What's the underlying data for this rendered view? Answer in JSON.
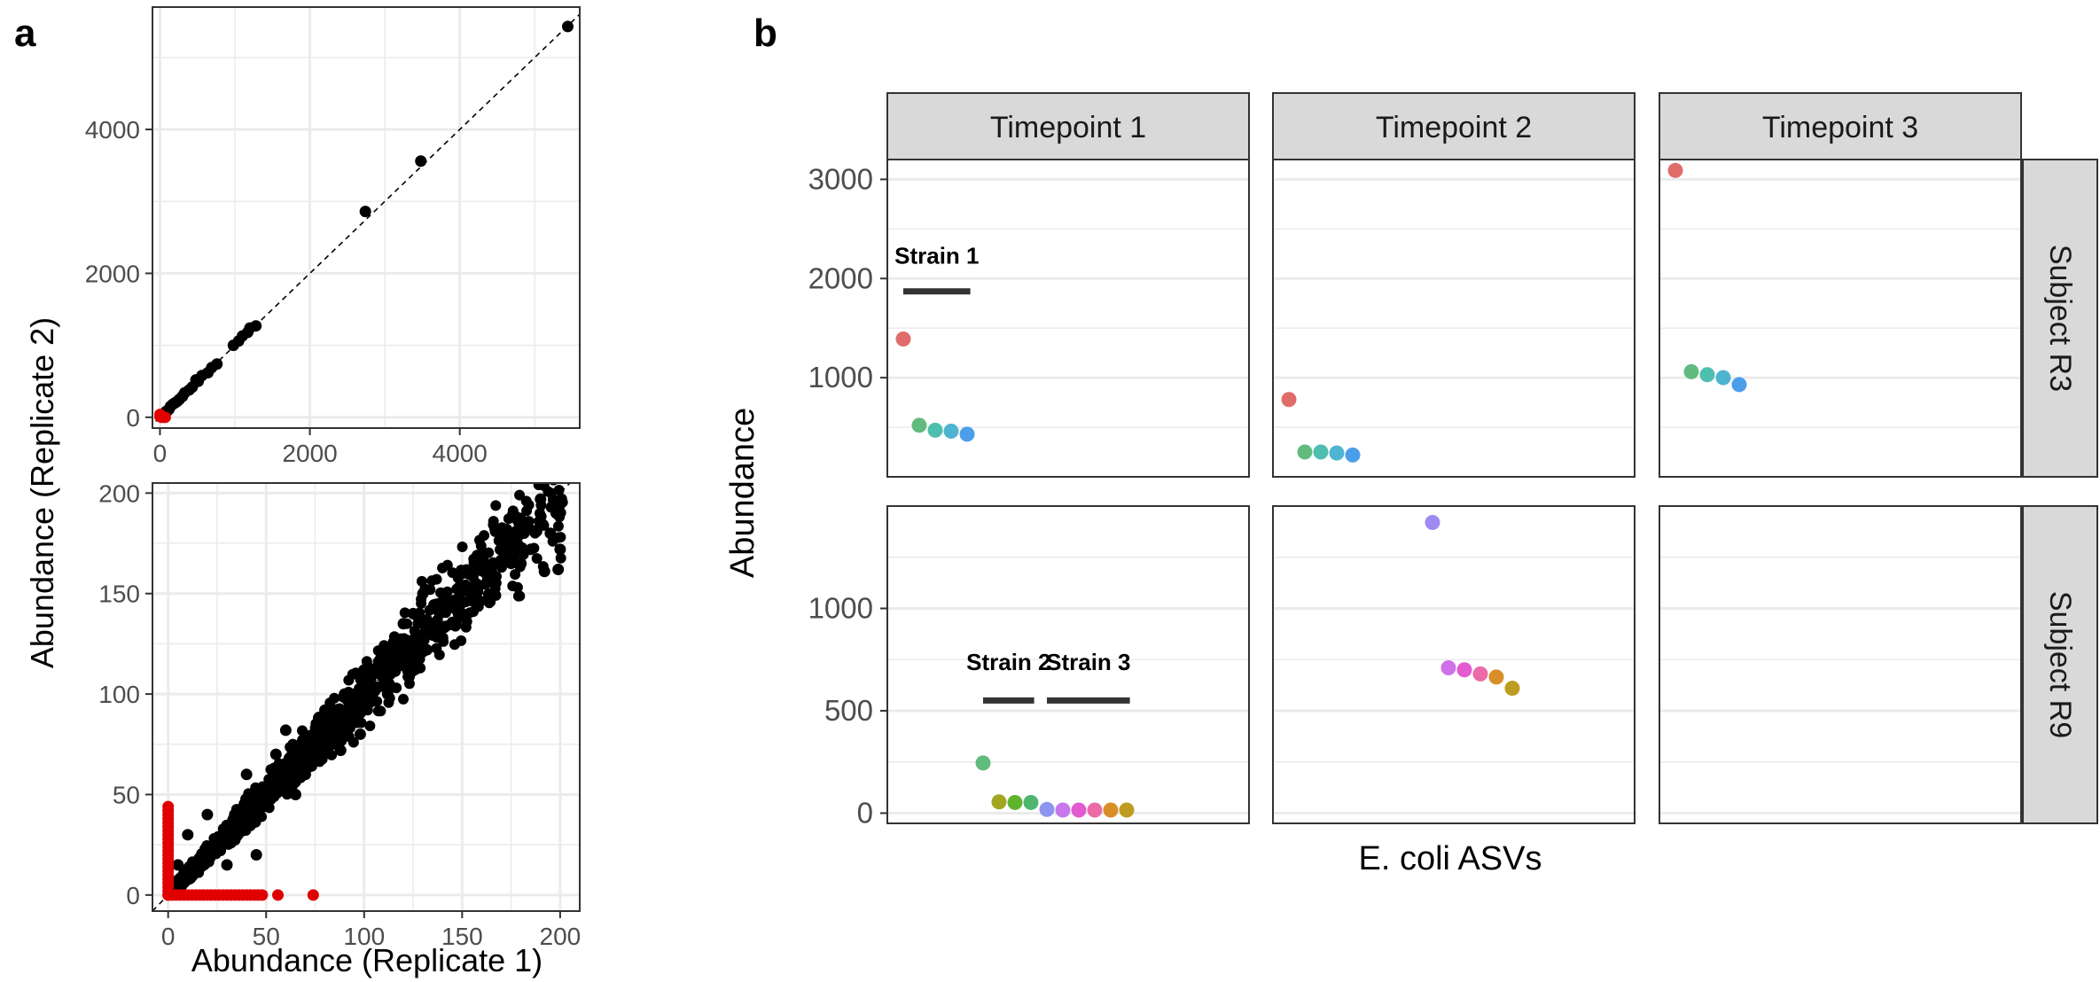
{
  "panel_labels": {
    "a": "a",
    "b": "b"
  },
  "colors": {
    "grid": "#EBEBEB",
    "panel_border": "#333333",
    "strip_fill": "#D9D9D9",
    "point_black": "#000000",
    "point_red": "#E00000",
    "diagonal": "#000000",
    "strain_bar": "#333333"
  },
  "chart_data": [
    {
      "id": "a-top",
      "type": "scatter",
      "title": "",
      "xlabel": "",
      "ylabel": "Abundance (Replicate 2)",
      "xlim": [
        -100,
        5600
      ],
      "ylim": [
        -150,
        5700
      ],
      "xticks": [
        0,
        2000,
        4000
      ],
      "yticks": [
        0,
        2000,
        4000
      ],
      "identity_line": true,
      "grid": true,
      "black_points": [
        [
          5440,
          5430
        ],
        [
          3480,
          3560
        ],
        [
          2740,
          2860
        ],
        [
          1280,
          1270
        ],
        [
          1200,
          1240
        ],
        [
          1170,
          1180
        ],
        [
          1100,
          1130
        ],
        [
          1050,
          1060
        ],
        [
          980,
          1000
        ],
        [
          760,
          740
        ],
        [
          690,
          690
        ],
        [
          640,
          620
        ],
        [
          560,
          580
        ],
        [
          510,
          500
        ],
        [
          480,
          520
        ],
        [
          430,
          420
        ],
        [
          390,
          380
        ],
        [
          330,
          340
        ],
        [
          300,
          290
        ],
        [
          260,
          250
        ],
        [
          230,
          220
        ],
        [
          200,
          200
        ],
        [
          170,
          180
        ],
        [
          140,
          150
        ],
        [
          120,
          110
        ],
        [
          100,
          90
        ],
        [
          80,
          80
        ],
        [
          60,
          55
        ],
        [
          40,
          35
        ],
        [
          25,
          20
        ],
        [
          15,
          10
        ]
      ],
      "red_points": [
        [
          0,
          40
        ],
        [
          0,
          10
        ],
        [
          20,
          0
        ],
        [
          50,
          0
        ],
        [
          70,
          0
        ]
      ]
    },
    {
      "id": "a-bottom",
      "type": "scatter",
      "title": "",
      "xlabel": "Abundance (Replicate 1)",
      "ylabel": "Abundance (Replicate 2)",
      "xlim": [
        -8,
        210
      ],
      "ylim": [
        -8,
        205
      ],
      "xticks": [
        0,
        50,
        100,
        150,
        200
      ],
      "yticks": [
        0,
        50,
        100,
        150,
        200
      ],
      "identity_line": true,
      "grid": true,
      "dense_cloud": {
        "n": 1400,
        "max": 200,
        "spread": 0.22
      },
      "black_points": [
        [
          190,
          197
        ],
        [
          198,
          190
        ],
        [
          195,
          180
        ],
        [
          200,
          172
        ],
        [
          199,
          162
        ],
        [
          192,
          161
        ],
        [
          185,
          172
        ],
        [
          178,
          175
        ],
        [
          172,
          181
        ],
        [
          165,
          160
        ],
        [
          160,
          170
        ],
        [
          155,
          152
        ],
        [
          150,
          160
        ],
        [
          143,
          145
        ],
        [
          130,
          150
        ],
        [
          125,
          140
        ],
        [
          120,
          135
        ],
        [
          115,
          125
        ],
        [
          110,
          120
        ],
        [
          105,
          110
        ],
        [
          100,
          112
        ],
        [
          95,
          98
        ],
        [
          90,
          100
        ],
        [
          85,
          88
        ],
        [
          80,
          92
        ],
        [
          75,
          70
        ],
        [
          60,
          82
        ],
        [
          70,
          60
        ],
        [
          98,
          80
        ],
        [
          112,
          100
        ],
        [
          140,
          128
        ],
        [
          175,
          165
        ],
        [
          188,
          181
        ],
        [
          180,
          165
        ],
        [
          120,
          115
        ],
        [
          132,
          122
        ],
        [
          150,
          140
        ],
        [
          20,
          40
        ],
        [
          10,
          30
        ],
        [
          5,
          15
        ],
        [
          30,
          15
        ],
        [
          45,
          20
        ],
        [
          40,
          60
        ],
        [
          55,
          70
        ],
        [
          65,
          50
        ],
        [
          88,
          72
        ]
      ],
      "red_axis_y": [
        0,
        2,
        4,
        6,
        8,
        10,
        12,
        14,
        16,
        18,
        20,
        22,
        24,
        26,
        28,
        30,
        32,
        34,
        36,
        38,
        40,
        42,
        44
      ],
      "red_axis_x": [
        0,
        2,
        4,
        6,
        8,
        10,
        12,
        14,
        16,
        18,
        20,
        22,
        24,
        26,
        28,
        30,
        32,
        34,
        36,
        38,
        40,
        42,
        44,
        46,
        48,
        56,
        74
      ]
    },
    {
      "id": "b",
      "type": "scatter",
      "title": "",
      "xlabel": "E. coli ASVs",
      "ylabel": "Abundance",
      "facet_columns": [
        "Timepoint 1",
        "Timepoint 2",
        "Timepoint 3"
      ],
      "facet_rows": [
        "Subject R3",
        "Subject R9"
      ],
      "row_scales": [
        {
          "ylim": [
            0,
            3200
          ],
          "ticks": [
            1000,
            2000,
            3000
          ],
          "minor": [
            500,
            1500,
            2500
          ]
        },
        {
          "ylim": [
            -50,
            1500
          ],
          "ticks": [
            0,
            500,
            1000
          ],
          "minor": [
            250,
            750,
            1250
          ]
        }
      ],
      "x_slots": 15,
      "cells": [
        {
          "row": 0,
          "col": 0,
          "points": [
            [
              0,
              1390,
              "#E06C6A"
            ],
            [
              1,
              520,
              "#62BB7E"
            ],
            [
              2,
              470,
              "#4EBFAF"
            ],
            [
              3,
              460,
              "#4FB4D2"
            ],
            [
              4,
              430,
              "#4C9EEB"
            ]
          ]
        },
        {
          "row": 0,
          "col": 1,
          "points": [
            [
              0,
              780,
              "#E06C6A"
            ],
            [
              1,
              250,
              "#62BB7E"
            ],
            [
              2,
              250,
              "#4EBFAF"
            ],
            [
              3,
              240,
              "#4FB4D2"
            ],
            [
              4,
              220,
              "#4C9EEB"
            ]
          ]
        },
        {
          "row": 0,
          "col": 2,
          "points": [
            [
              0,
              3090,
              "#E06C6A"
            ],
            [
              1,
              1060,
              "#62BB7E"
            ],
            [
              2,
              1030,
              "#4EBFAF"
            ],
            [
              3,
              1000,
              "#4FB4D2"
            ],
            [
              4,
              930,
              "#4C9EEB"
            ]
          ]
        },
        {
          "row": 1,
          "col": 0,
          "points": [
            [
              5,
              245,
              "#62BB7E"
            ],
            [
              6,
              55,
              "#A2A621"
            ],
            [
              7,
              52,
              "#5FB42E"
            ],
            [
              8,
              52,
              "#4FB66E"
            ],
            [
              9,
              18,
              "#8C96F0"
            ],
            [
              10,
              15,
              "#C678EC"
            ],
            [
              11,
              15,
              "#E25BD0"
            ],
            [
              12,
              15,
              "#EB6AA8"
            ],
            [
              13,
              15,
              "#D98E2A"
            ],
            [
              14,
              15,
              "#BE9C20"
            ]
          ]
        },
        {
          "row": 1,
          "col": 1,
          "points": [
            [
              9,
              1420,
              "#9E8AF0"
            ],
            [
              10,
              710,
              "#D070E8"
            ],
            [
              11,
              700,
              "#E25BD0"
            ],
            [
              12,
              680,
              "#EB6AA8"
            ],
            [
              13,
              665,
              "#D98E2A"
            ],
            [
              14,
              610,
              "#BE9C20"
            ]
          ]
        },
        {
          "row": 1,
          "col": 2,
          "points": []
        }
      ],
      "annotations": [
        {
          "text": "Strain 1",
          "row": 0,
          "col": 0,
          "slot_from": 0,
          "slot_to": 4.2,
          "y": 1870,
          "label_y": 2150
        },
        {
          "text": "Strain 2",
          "row": 1,
          "col": 0,
          "slot_from": 5,
          "slot_to": 8.2,
          "y": 550,
          "label_y": 700
        },
        {
          "text": "Strain 3",
          "row": 1,
          "col": 0,
          "slot_from": 9,
          "slot_to": 14.2,
          "y": 550,
          "label_y": 700
        }
      ]
    }
  ]
}
